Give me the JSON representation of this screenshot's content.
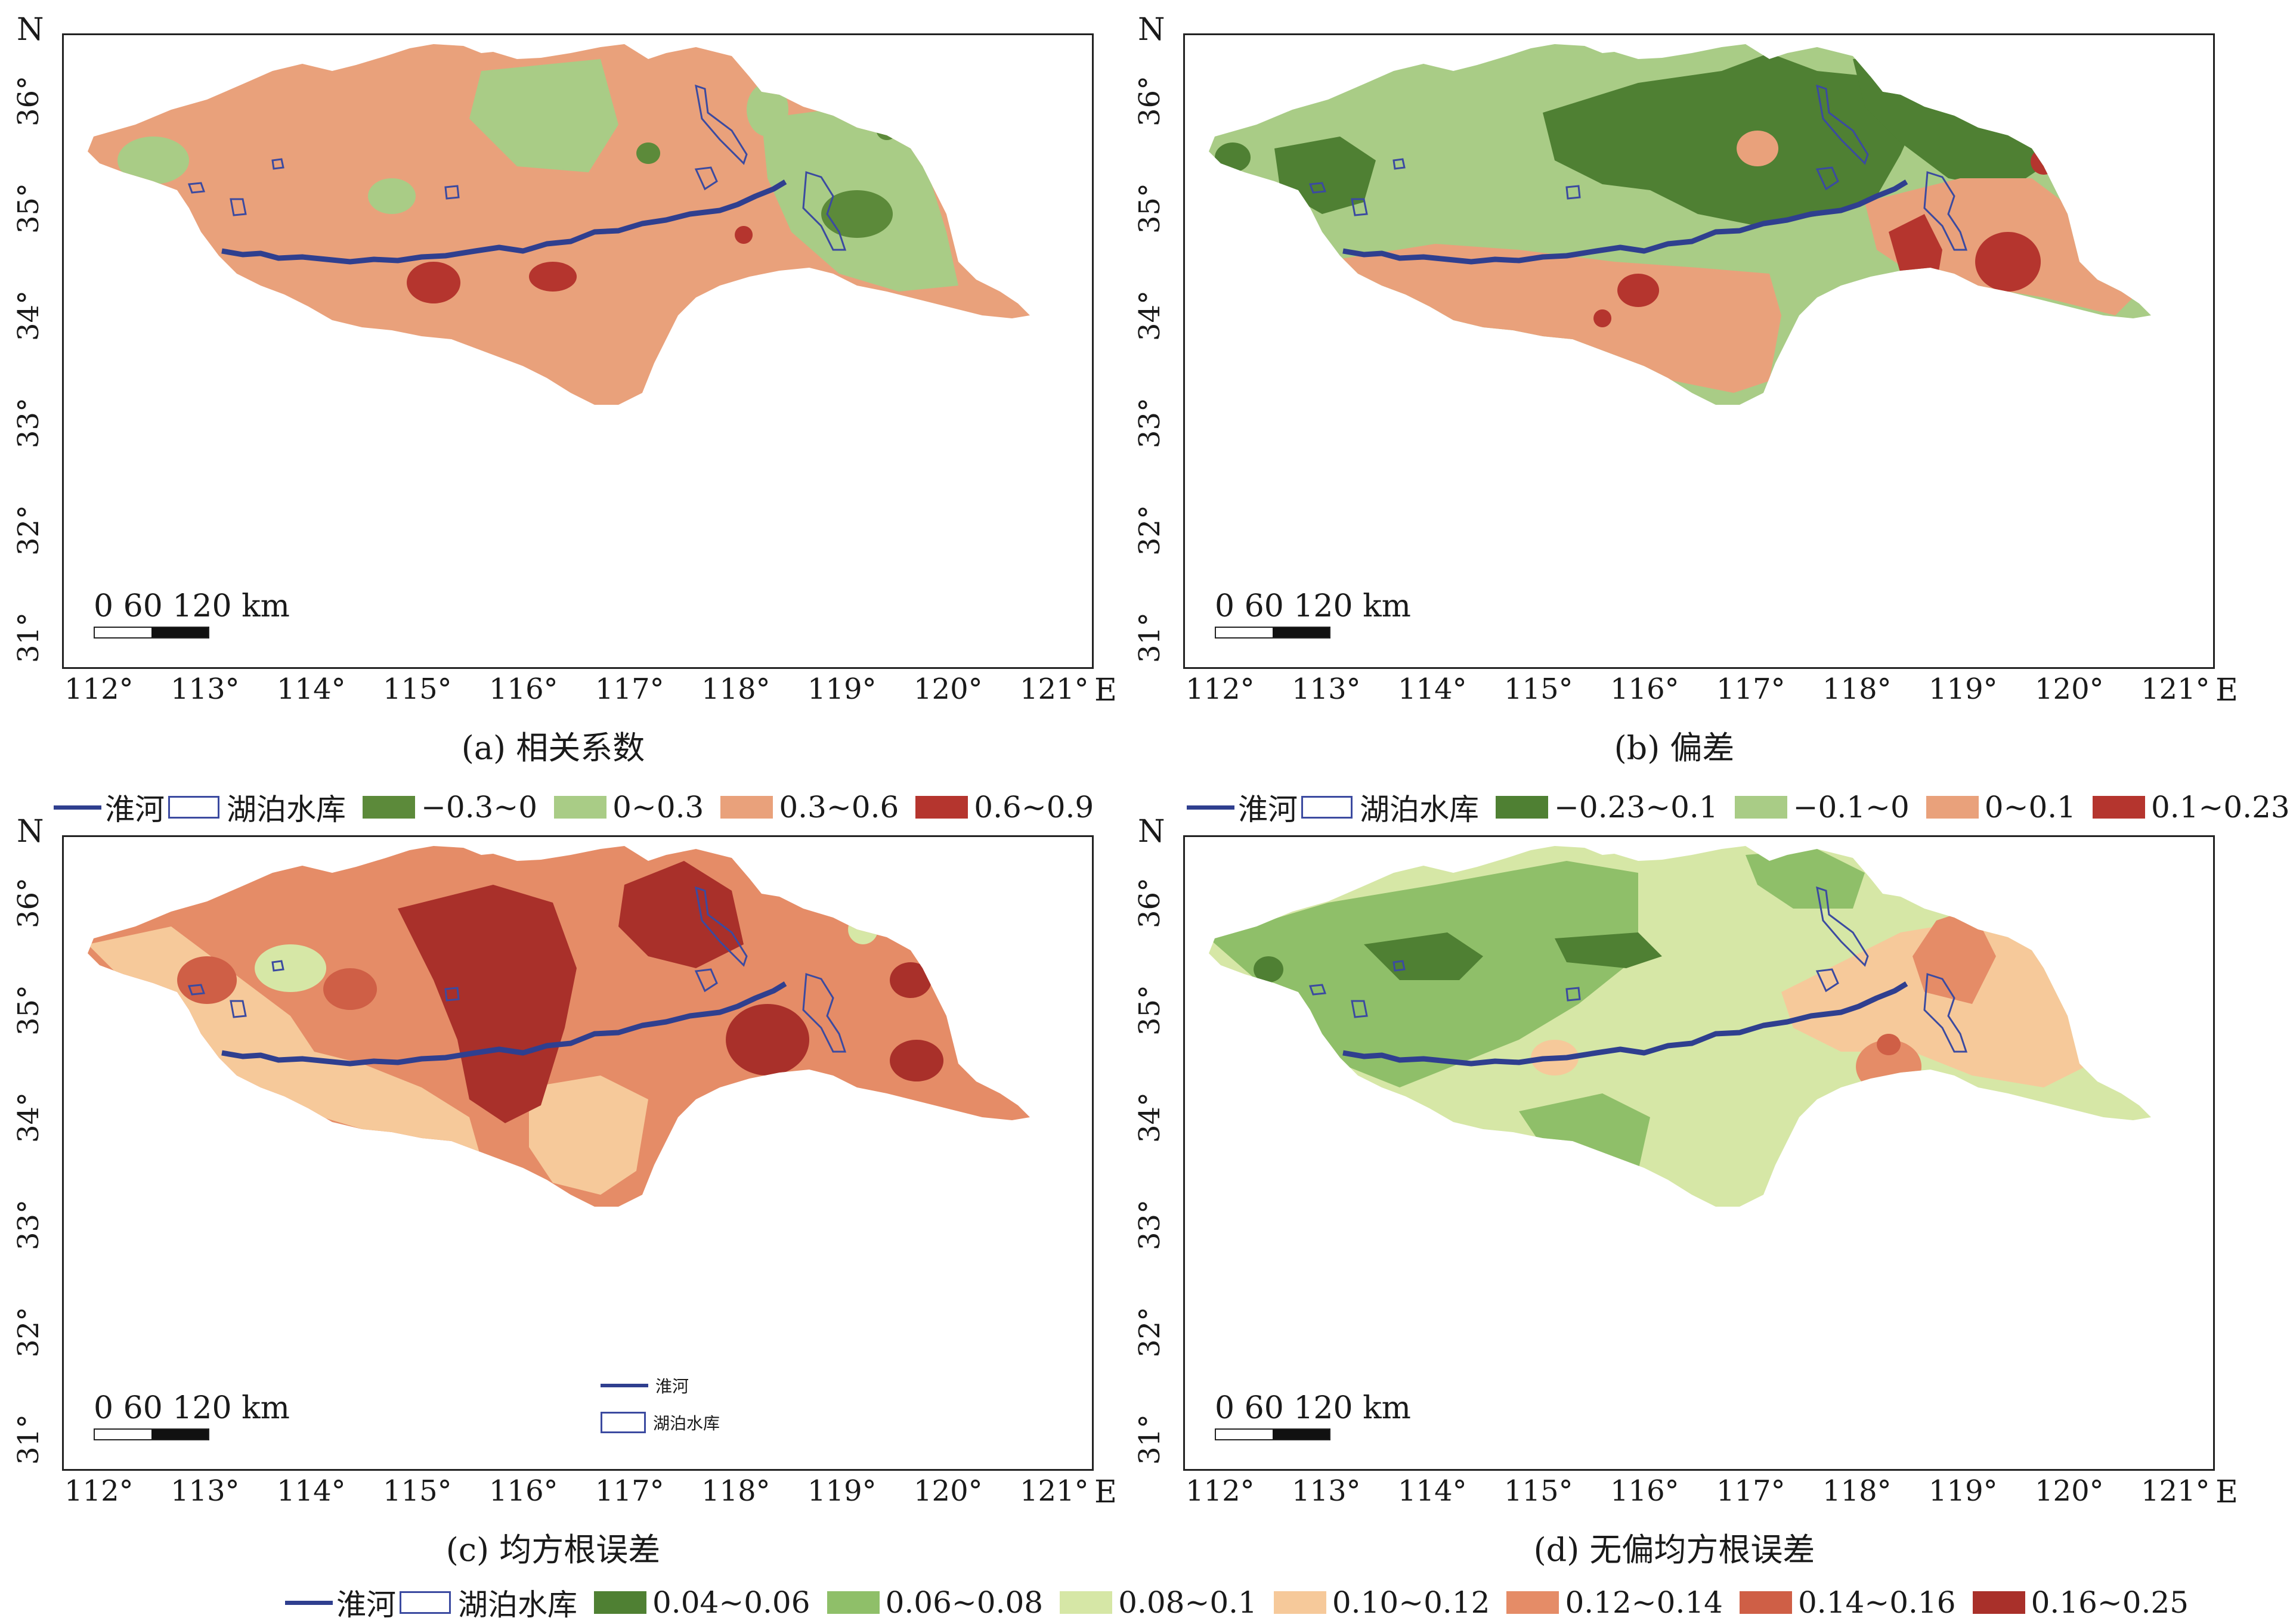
{
  "axes": {
    "x_ticks": [
      "112°",
      "113°",
      "114°",
      "115°",
      "116°",
      "117°",
      "118°",
      "119°",
      "120°",
      "121°"
    ],
    "x_letter": "E",
    "y_ticks": [
      "31°",
      "32°",
      "33°",
      "34°",
      "35°",
      "36°"
    ],
    "y_letter": "N"
  },
  "scalebar": {
    "label": "0   60  120 km"
  },
  "panels": [
    {
      "id": "a",
      "caption": "(a) 相关系数",
      "colors": [
        "#5c8a3a",
        "#a9cc86",
        "#e9a17b",
        "#b5352e"
      ],
      "base": "#e9a17b"
    },
    {
      "id": "b",
      "caption": "(b) 偏差",
      "colors": [
        "#4f8033",
        "#a9cc86",
        "#e9a17b",
        "#b5352e"
      ],
      "base": "#a9cc86"
    },
    {
      "id": "c",
      "caption": "(c) 均方根误差",
      "colors": [
        "#f6c99a",
        "#e58c67",
        "#cf5f46",
        "#a9302a",
        "#d6e7a6",
        "#a9cc86"
      ],
      "base": "#e58c67",
      "inset_legend": {
        "river": "淮河",
        "lake": "湖泊水库"
      }
    },
    {
      "id": "d",
      "caption": "(d) 无偏均方根误差",
      "colors": [
        "#4f8033",
        "#8fbf69",
        "#d6e7a6",
        "#f6c99a",
        "#e58c67",
        "#cf5f46"
      ],
      "base": "#d6e7a6"
    }
  ],
  "legends": [
    {
      "river": "淮河",
      "lake": "湖泊水库",
      "items": [
        {
          "label": "−0.3~0",
          "color": "#5c8a3a"
        },
        {
          "label": "0~0.3",
          "color": "#a9cc86"
        },
        {
          "label": "0.3~0.6",
          "color": "#e9a17b"
        },
        {
          "label": "0.6~0.9",
          "color": "#b5352e"
        }
      ]
    },
    {
      "river": "淮河",
      "lake": "湖泊水库",
      "items": [
        {
          "label": "−0.23~0.1",
          "color": "#4f8033"
        },
        {
          "label": "−0.1~0",
          "color": "#a9cc86"
        },
        {
          "label": "0~0.1",
          "color": "#e9a17b"
        },
        {
          "label": "0.1~0.23",
          "color": "#b5352e"
        }
      ]
    },
    {
      "river": "淮河",
      "lake": "湖泊水库",
      "items": [
        {
          "label": "0.04~0.06",
          "color": "#4f8033"
        },
        {
          "label": "0.06~0.08",
          "color": "#8fbf69"
        },
        {
          "label": "0.08~0.1",
          "color": "#d6e7a6"
        },
        {
          "label": "0.10~0.12",
          "color": "#f6c99a"
        },
        {
          "label": "0.12~0.14",
          "color": "#e58c67"
        },
        {
          "label": "0.14~0.16",
          "color": "#cf5f46"
        },
        {
          "label": "0.16~0.25",
          "color": "#a9302a"
        }
      ]
    }
  ],
  "river_color": "#2f3f8f",
  "lake_color": "#3b4aa0"
}
